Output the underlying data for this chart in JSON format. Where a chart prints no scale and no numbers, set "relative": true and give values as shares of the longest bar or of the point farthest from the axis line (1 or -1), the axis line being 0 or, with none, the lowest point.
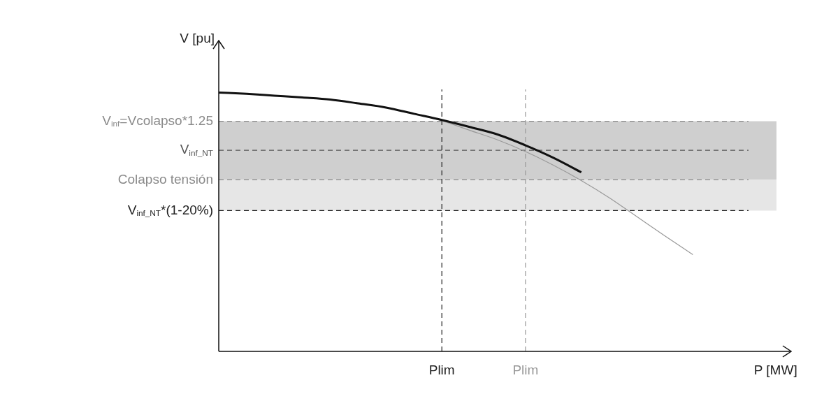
{
  "chart_data": {
    "type": "line",
    "relative": true,
    "xlabel": "P [MW]",
    "ylabel": "V [pu]",
    "legend": false,
    "categories": [
      null,
      null,
      null,
      null,
      null,
      null,
      null,
      null,
      null,
      null,
      null,
      null,
      null,
      null,
      null,
      null,
      null,
      null,
      null,
      null,
      null
    ],
    "series": [
      {
        "color": "#111111",
        "values": [
          1,
          0.995,
          0.988,
          0.981,
          0.973,
          0.958,
          0.942,
          0.918,
          0.894,
          0.867,
          0.838,
          0.796,
          0.748,
          0.692,
          null,
          null,
          null,
          null,
          null,
          null,
          null
        ]
      },
      {
        "color": "#999999",
        "values": [
          1,
          0.995,
          0.988,
          0.981,
          0.973,
          0.958,
          0.942,
          0.918,
          0.891,
          0.854,
          0.817,
          0.772,
          0.719,
          0.66,
          0.594,
          0.52,
          0.446,
          0.374,
          null,
          null,
          null
        ]
      }
    ],
    "ref_lines": [
      {
        "axis": "y",
        "value": 0.889,
        "label": "V$_{inf}$=Vcolapso*1.25",
        "color": "#8a8a8a",
        "line_style": "dashed"
      },
      {
        "axis": "y",
        "value": 0.777,
        "label": "V$_{inf_NT}$",
        "color": "#555555",
        "line_style": "dashed"
      },
      {
        "axis": "y",
        "value": 0.663,
        "label": "Colapso tensión",
        "color": "#8a8a8a",
        "line_style": "dashed"
      },
      {
        "axis": "y",
        "value": 0.544,
        "label": "V$_{inf_NT}$*(1-20%)",
        "color": "#222222",
        "line_style": "dashed"
      }
    ],
    "annotations": [
      "Plim",
      "Plim"
    ],
    "bands": [
      {
        "axis": "y",
        "from": 0.663,
        "to": 0.889,
        "color": "#cfcfcf"
      },
      {
        "axis": "y",
        "from": 0.544,
        "to": 0.663,
        "color": "#e6e6e6"
      }
    ]
  }
}
